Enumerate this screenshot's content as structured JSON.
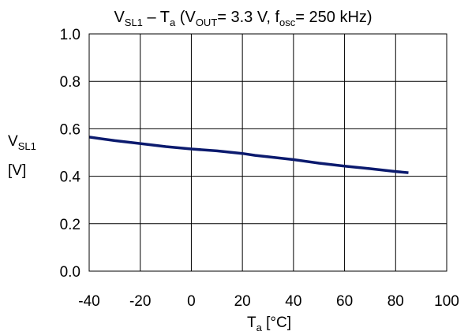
{
  "chart_data": {
    "type": "line",
    "title": {
      "v_main": "V",
      "v_sub": "SL1",
      "dash": " – T",
      "ta_sub": "a",
      "paren_open": " (V",
      "vout_sub": "OUT",
      "vout_value": "= 3.3 V, f",
      "fosc_sub": "osc",
      "fosc_value": "= 250 kHz)"
    },
    "ylabel": {
      "main": "V",
      "sub": "SL1",
      "unit": "[V]"
    },
    "xlabel": {
      "main": "T",
      "sub": "a",
      "unit": " [°C]"
    },
    "xlim": [
      -40,
      100
    ],
    "ylim": [
      0,
      1.0
    ],
    "x_ticks": [
      -40,
      -20,
      0,
      20,
      40,
      60,
      80,
      100
    ],
    "y_ticks": [
      0.0,
      0.2,
      0.4,
      0.6,
      0.8,
      1.0
    ],
    "x_tick_labels": [
      "-40",
      "-20",
      "0",
      "20",
      "40",
      "60",
      "80",
      "100"
    ],
    "y_tick_labels": [
      "0.0",
      "0.2",
      "0.4",
      "0.6",
      "0.8",
      "1.0"
    ],
    "grid": true,
    "line_color": "#0b1a6e",
    "series": [
      {
        "x": [
          -40,
          -30,
          -20,
          -10,
          0,
          10,
          20,
          25,
          30,
          40,
          50,
          60,
          70,
          80,
          85
        ],
        "y": [
          0.565,
          0.55,
          0.538,
          0.525,
          0.515,
          0.507,
          0.496,
          0.488,
          0.482,
          0.47,
          0.455,
          0.443,
          0.432,
          0.42,
          0.415
        ]
      }
    ]
  }
}
